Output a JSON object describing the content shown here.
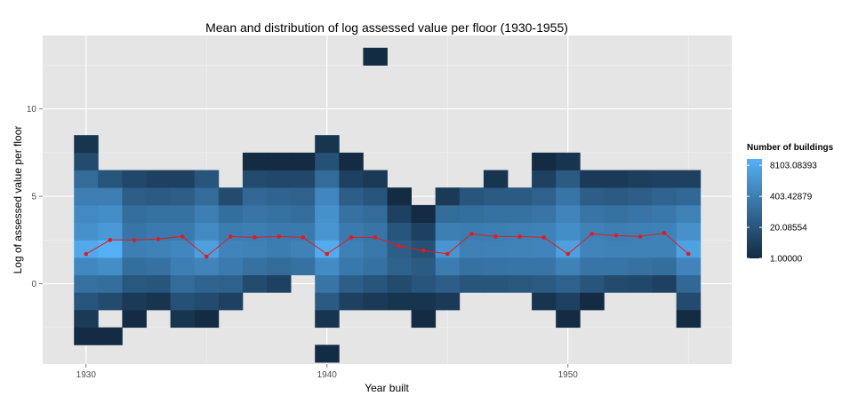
{
  "chart_data": {
    "type": "heatmap",
    "title": "Mean and distribution of log assessed value per floor (1930-1955)",
    "xlabel": "Year built",
    "ylabel": "Log of assessed value per floor",
    "xlim": [
      1928.2,
      1956.8
    ],
    "ylim": [
      -4.6,
      14.2
    ],
    "x_ticks": [
      1930,
      1940,
      1950
    ],
    "y_ticks": [
      0,
      5,
      10
    ],
    "tile_height": 1,
    "grid": true,
    "legend": {
      "title": "Number of buildings",
      "position": "right",
      "scale": "log",
      "labels": [
        "8103.08393",
        "403.42879",
        "20.08554",
        "1.00000"
      ],
      "values": [
        8103.08393,
        403.42879,
        20.08554,
        1.0
      ],
      "max": 15000
    },
    "colors": {
      "low": "#132b43",
      "high": "#56b1f7",
      "mean_line": "#e41a1c",
      "panel": "#e5e5e5",
      "grid": "#ffffff"
    },
    "columns": [
      {
        "year": 1930,
        "bins": [
          -3,
          -2,
          -1,
          0,
          1,
          2,
          3,
          4,
          5,
          6,
          7,
          8
        ],
        "counts": [
          1,
          3,
          20,
          150,
          800,
          8000,
          1500,
          900,
          400,
          100,
          10,
          2
        ]
      },
      {
        "year": 1931,
        "bins": [
          -3,
          -1,
          0,
          1,
          2,
          3,
          4,
          5,
          6
        ],
        "counts": [
          1,
          10,
          120,
          1200,
          14000,
          2500,
          1200,
          400,
          20
        ]
      },
      {
        "year": 1932,
        "bins": [
          -2,
          -1,
          0,
          1,
          2,
          3,
          4,
          5,
          6
        ],
        "counts": [
          1,
          3,
          25,
          120,
          400,
          200,
          120,
          40,
          8
        ]
      },
      {
        "year": 1933,
        "bins": [
          -1,
          0,
          1,
          2,
          3,
          4,
          5,
          6
        ],
        "counts": [
          2,
          20,
          150,
          500,
          300,
          150,
          30,
          5
        ]
      },
      {
        "year": 1934,
        "bins": [
          -2,
          -1,
          0,
          1,
          2,
          3,
          4,
          5,
          6
        ],
        "counts": [
          2,
          15,
          100,
          400,
          700,
          300,
          150,
          40,
          5
        ]
      },
      {
        "year": 1935,
        "bins": [
          -2,
          -1,
          0,
          1,
          2,
          3,
          4,
          5,
          6
        ],
        "counts": [
          1,
          10,
          60,
          600,
          4000,
          900,
          400,
          100,
          20
        ]
      },
      {
        "year": 1936,
        "bins": [
          -1,
          0,
          1,
          2,
          3,
          4,
          5
        ],
        "counts": [
          5,
          50,
          300,
          600,
          350,
          120,
          10
        ]
      },
      {
        "year": 1937,
        "bins": [
          0,
          1,
          2,
          3,
          4,
          5,
          6,
          7
        ],
        "counts": [
          10,
          150,
          500,
          400,
          200,
          80,
          10,
          1
        ]
      },
      {
        "year": 1938,
        "bins": [
          0,
          1,
          2,
          3,
          4,
          5,
          6,
          7
        ],
        "counts": [
          5,
          100,
          350,
          300,
          150,
          60,
          8,
          1
        ]
      },
      {
        "year": 1939,
        "bins": [
          1,
          2,
          3,
          4,
          5,
          6,
          7
        ],
        "counts": [
          150,
          500,
          300,
          120,
          50,
          8,
          1
        ]
      },
      {
        "year": 1940,
        "bins": [
          -4,
          -2,
          -1,
          0,
          1,
          2,
          3,
          4,
          5,
          6,
          7,
          8
        ],
        "counts": [
          1,
          2,
          30,
          200,
          1000,
          10000,
          2000,
          1500,
          700,
          100,
          15,
          2
        ]
      },
      {
        "year": 1941,
        "bins": [
          -1,
          0,
          1,
          2,
          3,
          4,
          5,
          6,
          7
        ],
        "counts": [
          5,
          40,
          250,
          450,
          300,
          150,
          40,
          5,
          1
        ]
      },
      {
        "year": 1942,
        "bins": [
          -1,
          0,
          1,
          2,
          3,
          4,
          5,
          6,
          13
        ],
        "counts": [
          3,
          20,
          150,
          250,
          200,
          100,
          20,
          3,
          1
        ]
      },
      {
        "year": 1943,
        "bins": [
          -1,
          0,
          1,
          2,
          3,
          4,
          5
        ],
        "counts": [
          2,
          10,
          50,
          40,
          20,
          5,
          1
        ]
      },
      {
        "year": 1944,
        "bins": [
          -2,
          -1,
          0,
          1,
          2,
          3,
          4
        ],
        "counts": [
          1,
          2,
          20,
          30,
          15,
          5,
          1
        ]
      },
      {
        "year": 1945,
        "bins": [
          -1,
          0,
          1,
          2,
          3,
          4,
          5
        ],
        "counts": [
          3,
          40,
          350,
          2000,
          400,
          100,
          3
        ]
      },
      {
        "year": 1946,
        "bins": [
          0,
          1,
          2,
          3,
          4,
          5
        ],
        "counts": [
          20,
          150,
          450,
          350,
          120,
          20
        ]
      },
      {
        "year": 1947,
        "bins": [
          0,
          1,
          2,
          3,
          4,
          5,
          6
        ],
        "counts": [
          20,
          180,
          500,
          400,
          150,
          30,
          2
        ]
      },
      {
        "year": 1948,
        "bins": [
          0,
          1,
          2,
          3,
          4,
          5
        ],
        "counts": [
          25,
          200,
          550,
          450,
          150,
          30
        ]
      },
      {
        "year": 1949,
        "bins": [
          -1,
          0,
          1,
          2,
          3,
          4,
          5,
          6,
          7
        ],
        "counts": [
          2,
          30,
          200,
          600,
          500,
          200,
          50,
          5,
          1
        ]
      },
      {
        "year": 1950,
        "bins": [
          -2,
          -1,
          0,
          1,
          2,
          3,
          4,
          5,
          6,
          7
        ],
        "counts": [
          1,
          5,
          50,
          500,
          4000,
          1200,
          600,
          200,
          30,
          2
        ]
      },
      {
        "year": 1951,
        "bins": [
          -1,
          0,
          1,
          2,
          3,
          4,
          5,
          6
        ],
        "counts": [
          1,
          20,
          200,
          600,
          500,
          200,
          40,
          3
        ]
      },
      {
        "year": 1952,
        "bins": [
          0,
          1,
          2,
          3,
          4,
          5,
          6
        ],
        "counts": [
          10,
          200,
          500,
          400,
          150,
          30,
          3
        ]
      },
      {
        "year": 1953,
        "bins": [
          0,
          1,
          2,
          3,
          4,
          5,
          6
        ],
        "counts": [
          8,
          150,
          500,
          450,
          200,
          40,
          4
        ]
      },
      {
        "year": 1954,
        "bins": [
          0,
          1,
          2,
          3,
          4,
          5,
          6
        ],
        "counts": [
          5,
          120,
          500,
          500,
          250,
          60,
          5
        ]
      },
      {
        "year": 1955,
        "bins": [
          -2,
          -1,
          0,
          1,
          2,
          3,
          4,
          5,
          6
        ],
        "counts": [
          1,
          10,
          80,
          600,
          5000,
          1500,
          500,
          80,
          5
        ]
      }
    ],
    "mean_series": {
      "x": [
        1930,
        1931,
        1932,
        1933,
        1934,
        1935,
        1936,
        1937,
        1938,
        1939,
        1940,
        1941,
        1942,
        1943,
        1944,
        1945,
        1946,
        1947,
        1948,
        1949,
        1950,
        1951,
        1952,
        1953,
        1954,
        1955
      ],
      "y": [
        1.7,
        2.5,
        2.5,
        2.55,
        2.7,
        1.55,
        2.7,
        2.65,
        2.7,
        2.65,
        1.7,
        2.65,
        2.65,
        2.15,
        1.9,
        1.7,
        2.85,
        2.7,
        2.7,
        2.65,
        1.7,
        2.85,
        2.75,
        2.7,
        2.9,
        1.7
      ]
    }
  }
}
